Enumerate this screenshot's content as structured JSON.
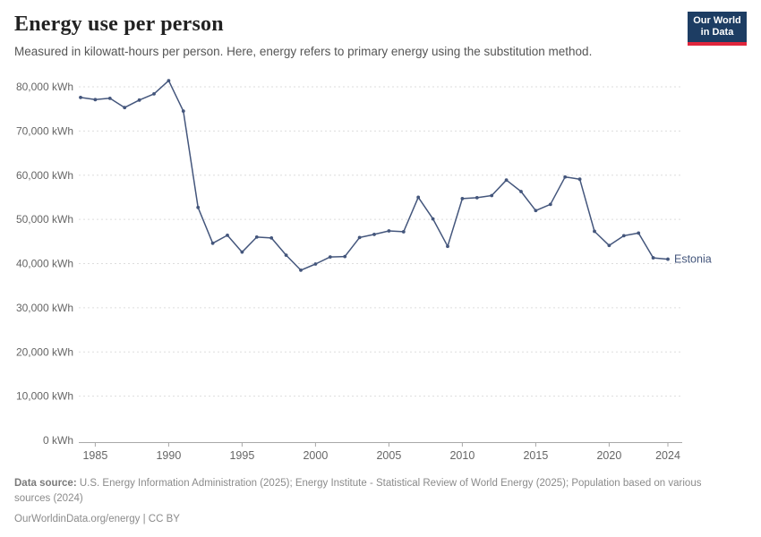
{
  "header": {
    "title": "Energy use per person",
    "subtitle": "Measured in kilowatt-hours per person. Here, energy refers to primary energy using the substitution method.",
    "logo": {
      "line1": "Our World",
      "line2": "in Data"
    }
  },
  "chart_data": {
    "type": "line",
    "title": "Energy use per person",
    "ylabel": "",
    "xlabel": "",
    "ylim": [
      0,
      80000
    ],
    "xlim": [
      1984,
      2024
    ],
    "grid": "dashed-horizontal",
    "yticks": [
      0,
      10000,
      20000,
      30000,
      40000,
      50000,
      60000,
      70000,
      80000
    ],
    "ytick_labels": [
      "0 kWh",
      "10,000 kWh",
      "20,000 kWh",
      "30,000 kWh",
      "40,000 kWh",
      "50,000 kWh",
      "60,000 kWh",
      "70,000 kWh",
      "80,000 kWh"
    ],
    "xticks": [
      1985,
      1990,
      1995,
      2000,
      2005,
      2010,
      2015,
      2020,
      2024
    ],
    "xtick_labels": [
      "1985",
      "1990",
      "1995",
      "2000",
      "2005",
      "2010",
      "2015",
      "2020",
      "2024"
    ],
    "series": [
      {
        "name": "Estonia",
        "color": "#44567c",
        "x": [
          1984,
          1985,
          1986,
          1987,
          1988,
          1989,
          1990,
          1991,
          1992,
          1993,
          1994,
          1995,
          1996,
          1997,
          1998,
          1999,
          2000,
          2001,
          2002,
          2003,
          2004,
          2005,
          2006,
          2007,
          2008,
          2009,
          2010,
          2011,
          2012,
          2013,
          2014,
          2015,
          2016,
          2017,
          2018,
          2019,
          2020,
          2021,
          2022,
          2023,
          2024
        ],
        "values": [
          77600,
          77100,
          77400,
          75300,
          77000,
          78400,
          81400,
          74500,
          52700,
          44600,
          46400,
          42600,
          46000,
          45800,
          41900,
          38500,
          39900,
          41500,
          41600,
          45900,
          46600,
          47400,
          47200,
          55000,
          50100,
          43900,
          54700,
          54900,
          55400,
          58900,
          56300,
          52000,
          53400,
          59600,
          59100,
          47300,
          44100,
          46300,
          46900,
          41300,
          41000
        ]
      }
    ]
  },
  "footer": {
    "datasource_label": "Data source:",
    "datasource_text": " U.S. Energy Information Administration (2025); Energy Institute - Statistical Review of World Energy (2025); Population based on various sources (2024)",
    "link": "OurWorldinData.org/energy | CC BY"
  },
  "colors": {
    "gridline": "#dddddd",
    "axis": "#a8a8a8",
    "tick_text": "#666666",
    "logo_bg": "#1d3d63",
    "logo_accent": "#e0263c"
  }
}
